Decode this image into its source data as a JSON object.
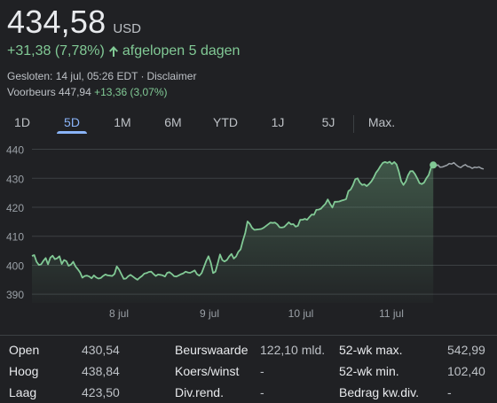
{
  "quote": {
    "price": "434,58",
    "currency": "USD",
    "change": "+31,38 (7,78%)",
    "period": "afgelopen 5 dagen",
    "closed_label": "Gesloten:",
    "closed_time": "14 jul, 05:26 EDT",
    "disclaimer": "Disclaimer",
    "premarket_label": "Voorbeurs",
    "premarket_price": "447,94",
    "premarket_change": "+13,36 (3,07%)"
  },
  "tabs": [
    "1D",
    "5D",
    "1M",
    "6M",
    "YTD",
    "1J",
    "5J",
    "Max."
  ],
  "active_tab": "5D",
  "colors": {
    "positive": "#81c995",
    "accent": "#8ab4f8",
    "background": "#202124",
    "line_after_close": "#9aa0a6"
  },
  "chart_data": {
    "type": "line",
    "x_ticks": [
      "8 jul",
      "9 jul",
      "10 jul",
      "11 jul"
    ],
    "y_ticks": [
      390,
      400,
      410,
      420,
      430,
      440
    ],
    "ylim": [
      387,
      442
    ],
    "grid": true,
    "series": [
      {
        "values": [
          403.2,
          403.5,
          401.2,
          400.1,
          400.3,
          401.5,
          402.5,
          400.3,
          402.6,
          403.3,
          402.1,
          402.4,
          403.1,
          400.4,
          401.8,
          401.4,
          399.8,
          400.2,
          401.2,
          399.6,
          398.6,
          397.5,
          395.7,
          396.3,
          396.4,
          396.1,
          395.5,
          396.5,
          395.8,
          395.4,
          395.6,
          396.3,
          396.8,
          396.5,
          396.4,
          396.3,
          397.0,
          399.6,
          398.5,
          396.9,
          395.3,
          395.4,
          396.2,
          396.7,
          396.1,
          395.5,
          395.0,
          395.7,
          396.3,
          397.1,
          397.3,
          397.7,
          397.8,
          397.0,
          396.3,
          396.8,
          396.7,
          396.5,
          396.1,
          397.4,
          397.6,
          397.0,
          396.2,
          396.1,
          396.5,
          396.9,
          397.2,
          397.8,
          397.5,
          397.4,
          397.8,
          398.2,
          396.9,
          396.4,
          397.3,
          399.4,
          401.5,
          403.1,
          400.9,
          397.3,
          397.8,
          400.6,
          403.7,
          401.8,
          401.3,
          401.8,
          403.0,
          403.9,
          402.3,
          403.0,
          404.6,
          405.5,
          408.5,
          411.1,
          415.1,
          414.3,
          412.9,
          412.2,
          412.3,
          412.4,
          412.5,
          412.9,
          413.5,
          414.1,
          414.7,
          414.6,
          414.7,
          414.1,
          413.1,
          413.0,
          413.2,
          414.0,
          414.8,
          414.1,
          414.2,
          413.3,
          413.6,
          415.7,
          415.7,
          416.0,
          415.7,
          416.6,
          417.5,
          417.4,
          419.1,
          419.2,
          419.5,
          420.4,
          421.2,
          422.7,
          421.2,
          419.9,
          421.9,
          421.9,
          422.0,
          422.3,
          422.5,
          422.8,
          425.6,
          426.1,
          427.6,
          429.7,
          430.0,
          428.5,
          427.7,
          427.9,
          427.3,
          428.0,
          428.9,
          430.2,
          431.9,
          432.9,
          434.2,
          435.3,
          435.6,
          435.3,
          435.7,
          434.9,
          435.6,
          434.8,
          432.3,
          429.0,
          427.7,
          428.9,
          431.0,
          432.4,
          432.5,
          431.5,
          430.0,
          428.3,
          428.0,
          428.5,
          430.0,
          431.1,
          433.6,
          434.58
        ]
      },
      {
        "values": [
          434.58,
          434.2,
          434.6,
          433.8,
          433.9,
          434.2,
          434.5,
          435.1,
          434.9,
          435.4,
          434.6,
          434.0,
          433.7,
          434.3,
          434.7,
          434.1,
          433.9,
          433.4,
          433.8,
          433.7,
          433.9,
          433.4,
          433.2
        ]
      }
    ]
  },
  "stats": [
    {
      "label": "Open",
      "value": "430,54"
    },
    {
      "label": "Hoog",
      "value": "438,84"
    },
    {
      "label": "Laag",
      "value": "423,50"
    },
    {
      "label": "Beurswaarde",
      "value": "122,10 mld."
    },
    {
      "label": "Koers/winst",
      "value": "-"
    },
    {
      "label": "Div.rend.",
      "value": "-"
    },
    {
      "label": "52-wk max.",
      "value": "542,99"
    },
    {
      "label": "52-wk min.",
      "value": "102,40"
    },
    {
      "label": "Bedrag kw.div.",
      "value": "-"
    }
  ]
}
